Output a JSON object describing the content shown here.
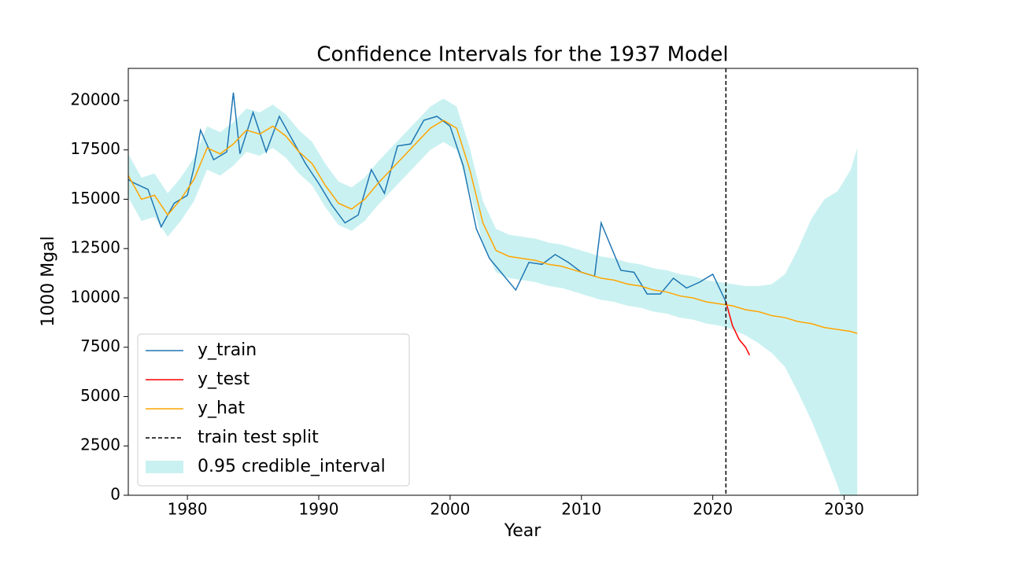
{
  "chart_data": {
    "type": "line",
    "title": "Confidence Intervals for the 1937 Model",
    "x_label": "Year",
    "y_label": "1000 Mgal",
    "xlim": [
      1975.5,
      2035.6
    ],
    "ylim": [
      0,
      21630
    ],
    "xticks": [
      1980,
      1990,
      2000,
      2010,
      2020,
      2030
    ],
    "yticks": [
      0,
      2500,
      5000,
      7500,
      10000,
      12500,
      15000,
      17500,
      20000
    ],
    "series": [
      {
        "name": "y_train",
        "color": "#1f77b4",
        "x": [
          1975.5,
          1976,
          1977,
          1978,
          1979,
          1980,
          1980.5,
          1981,
          1982,
          1983,
          1983.5,
          1984,
          1985,
          1986,
          1987,
          1988,
          1989,
          1990,
          1991,
          1992,
          1993,
          1994,
          1995,
          1996,
          1997,
          1998,
          1999,
          2000,
          2001,
          2002,
          2003,
          2004,
          2005,
          2006,
          2007,
          2008,
          2009,
          2010,
          2011,
          2011.5,
          2012,
          2013,
          2014,
          2015,
          2016,
          2017,
          2018,
          2019,
          2020,
          2021
        ],
        "values": [
          16000,
          15800,
          15500,
          13600,
          14800,
          15200,
          16600,
          18500,
          17000,
          17400,
          20400,
          17300,
          19400,
          17400,
          19200,
          18000,
          16800,
          15800,
          14700,
          13800,
          14200,
          16500,
          15300,
          17700,
          17800,
          19000,
          19200,
          18700,
          16700,
          13500,
          12000,
          11200,
          10400,
          11800,
          11700,
          12200,
          11800,
          11300,
          11100,
          13800,
          13000,
          11400,
          11300,
          10200,
          10200,
          11000,
          10500,
          10800,
          11200,
          9800
        ]
      },
      {
        "name": "y_test",
        "color": "#ff0000",
        "x": [
          2021,
          2021.5,
          2022,
          2022.5,
          2022.8
        ],
        "values": [
          9800,
          8600,
          7900,
          7500,
          7100
        ]
      },
      {
        "name": "y_hat",
        "color": "#ffa500",
        "x": [
          1975.5,
          1976.5,
          1977.5,
          1978.5,
          1979.5,
          1980.5,
          1981.5,
          1982.5,
          1983.5,
          1984.5,
          1985.5,
          1986.5,
          1987.5,
          1988.5,
          1989.5,
          1990.5,
          1991.5,
          1992.5,
          1993.5,
          1994.5,
          1995.5,
          1996.5,
          1997.5,
          1998.5,
          1999.5,
          2000.5,
          2001.5,
          2002.5,
          2003.5,
          2004.5,
          2005.5,
          2006.5,
          2007.5,
          2008.5,
          2009.5,
          2010.5,
          2011.5,
          2012.5,
          2013.5,
          2014.5,
          2015.5,
          2016.5,
          2017.5,
          2018.5,
          2019.5,
          2020.5,
          2021.5,
          2022.5,
          2023.5,
          2024.5,
          2025.5,
          2026.5,
          2027.5,
          2028.5,
          2029.5,
          2030.5,
          2031
        ],
        "values": [
          16200,
          15000,
          15200,
          14200,
          15000,
          16000,
          17600,
          17300,
          17800,
          18500,
          18300,
          18700,
          18200,
          17400,
          16800,
          15700,
          14800,
          14500,
          15000,
          15800,
          16500,
          17200,
          17900,
          18600,
          19000,
          18600,
          16500,
          13800,
          12400,
          12100,
          12000,
          11900,
          11700,
          11600,
          11400,
          11200,
          11000,
          10900,
          10700,
          10600,
          10400,
          10300,
          10100,
          10000,
          9800,
          9700,
          9600,
          9400,
          9300,
          9100,
          9000,
          8800,
          8700,
          8500,
          8400,
          8300,
          8200
        ]
      }
    ],
    "split": {
      "name": "train test split",
      "x": 2021,
      "color": "#000000"
    },
    "interval": {
      "name": "0.95 credible_interval",
      "color": "#aeeaea",
      "x": [
        1975.5,
        1976.5,
        1977.5,
        1978.5,
        1979.5,
        1980.5,
        1981.5,
        1982.5,
        1983.5,
        1984.5,
        1985.5,
        1986.5,
        1987.5,
        1988.5,
        1989.5,
        1990.5,
        1991.5,
        1992.5,
        1993.5,
        1994.5,
        1995.5,
        1996.5,
        1997.5,
        1998.5,
        1999.5,
        2000.5,
        2001.5,
        2002.5,
        2003.5,
        2004.5,
        2005.5,
        2006.5,
        2007.5,
        2008.5,
        2009.5,
        2010.5,
        2011.5,
        2012.5,
        2013.5,
        2014.5,
        2015.5,
        2016.5,
        2017.5,
        2018.5,
        2019.5,
        2020.5,
        2021.5,
        2022.5,
        2023.5,
        2024.5,
        2025.5,
        2026.5,
        2027.5,
        2028.5,
        2029.5,
        2030.5,
        2031
      ],
      "lower": [
        15100,
        13900,
        14100,
        13100,
        13900,
        14900,
        16500,
        16200,
        16700,
        17400,
        17200,
        17600,
        17100,
        16300,
        15700,
        14600,
        13700,
        13400,
        13900,
        14700,
        15400,
        16100,
        16800,
        17500,
        17900,
        17500,
        15400,
        12700,
        11300,
        11000,
        10900,
        10800,
        10600,
        10500,
        10300,
        10100,
        9900,
        9800,
        9600,
        9500,
        9300,
        9200,
        9000,
        8900,
        8700,
        8600,
        8400,
        8100,
        7700,
        7200,
        6500,
        5200,
        3800,
        2200,
        500,
        -1500,
        -2500
      ],
      "upper": [
        17300,
        16100,
        16300,
        15300,
        16100,
        17100,
        18700,
        18400,
        18900,
        19600,
        19400,
        19800,
        19300,
        18500,
        17900,
        16800,
        15900,
        15600,
        16100,
        16900,
        17600,
        18300,
        19000,
        19700,
        20100,
        19700,
        17600,
        14900,
        13500,
        13200,
        13100,
        13000,
        12800,
        12700,
        12500,
        12300,
        12100,
        12000,
        11800,
        11700,
        11500,
        11400,
        11200,
        11100,
        10900,
        10800,
        10700,
        10600,
        10600,
        10700,
        11200,
        12500,
        14000,
        15000,
        15400,
        16500,
        17600
      ]
    },
    "legend": "lower left"
  }
}
